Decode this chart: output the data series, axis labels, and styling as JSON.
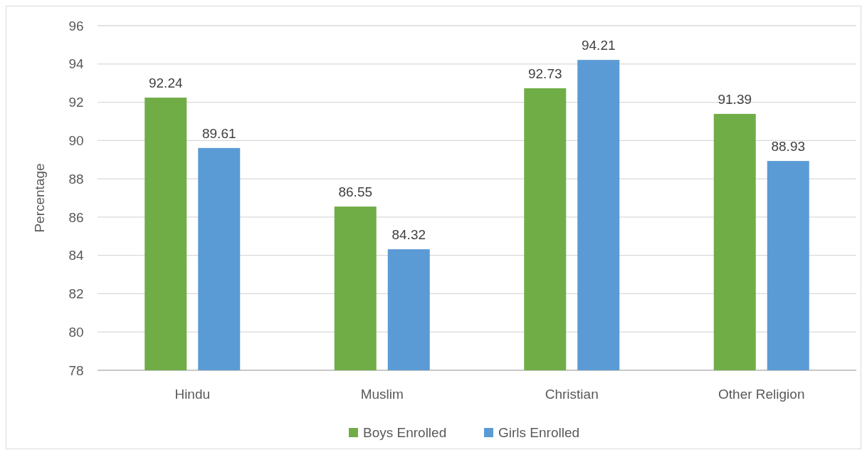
{
  "chart_data": {
    "type": "bar",
    "ylabel": "Percentage",
    "categories": [
      "Hindu",
      "Muslim",
      "Christian",
      "Other Religion"
    ],
    "series": [
      {
        "name": "Boys Enrolled",
        "color": "#70ad47",
        "values": [
          92.24,
          86.55,
          92.73,
          91.39
        ]
      },
      {
        "name": "Girls Enrolled",
        "color": "#5b9bd5",
        "values": [
          89.61,
          84.32,
          94.21,
          88.93
        ]
      }
    ],
    "ylim": [
      78,
      96
    ],
    "yticks": [
      78,
      80,
      82,
      84,
      86,
      88,
      90,
      92,
      94,
      96
    ],
    "grid": "y",
    "legend": "bottom",
    "data_labels": true
  }
}
